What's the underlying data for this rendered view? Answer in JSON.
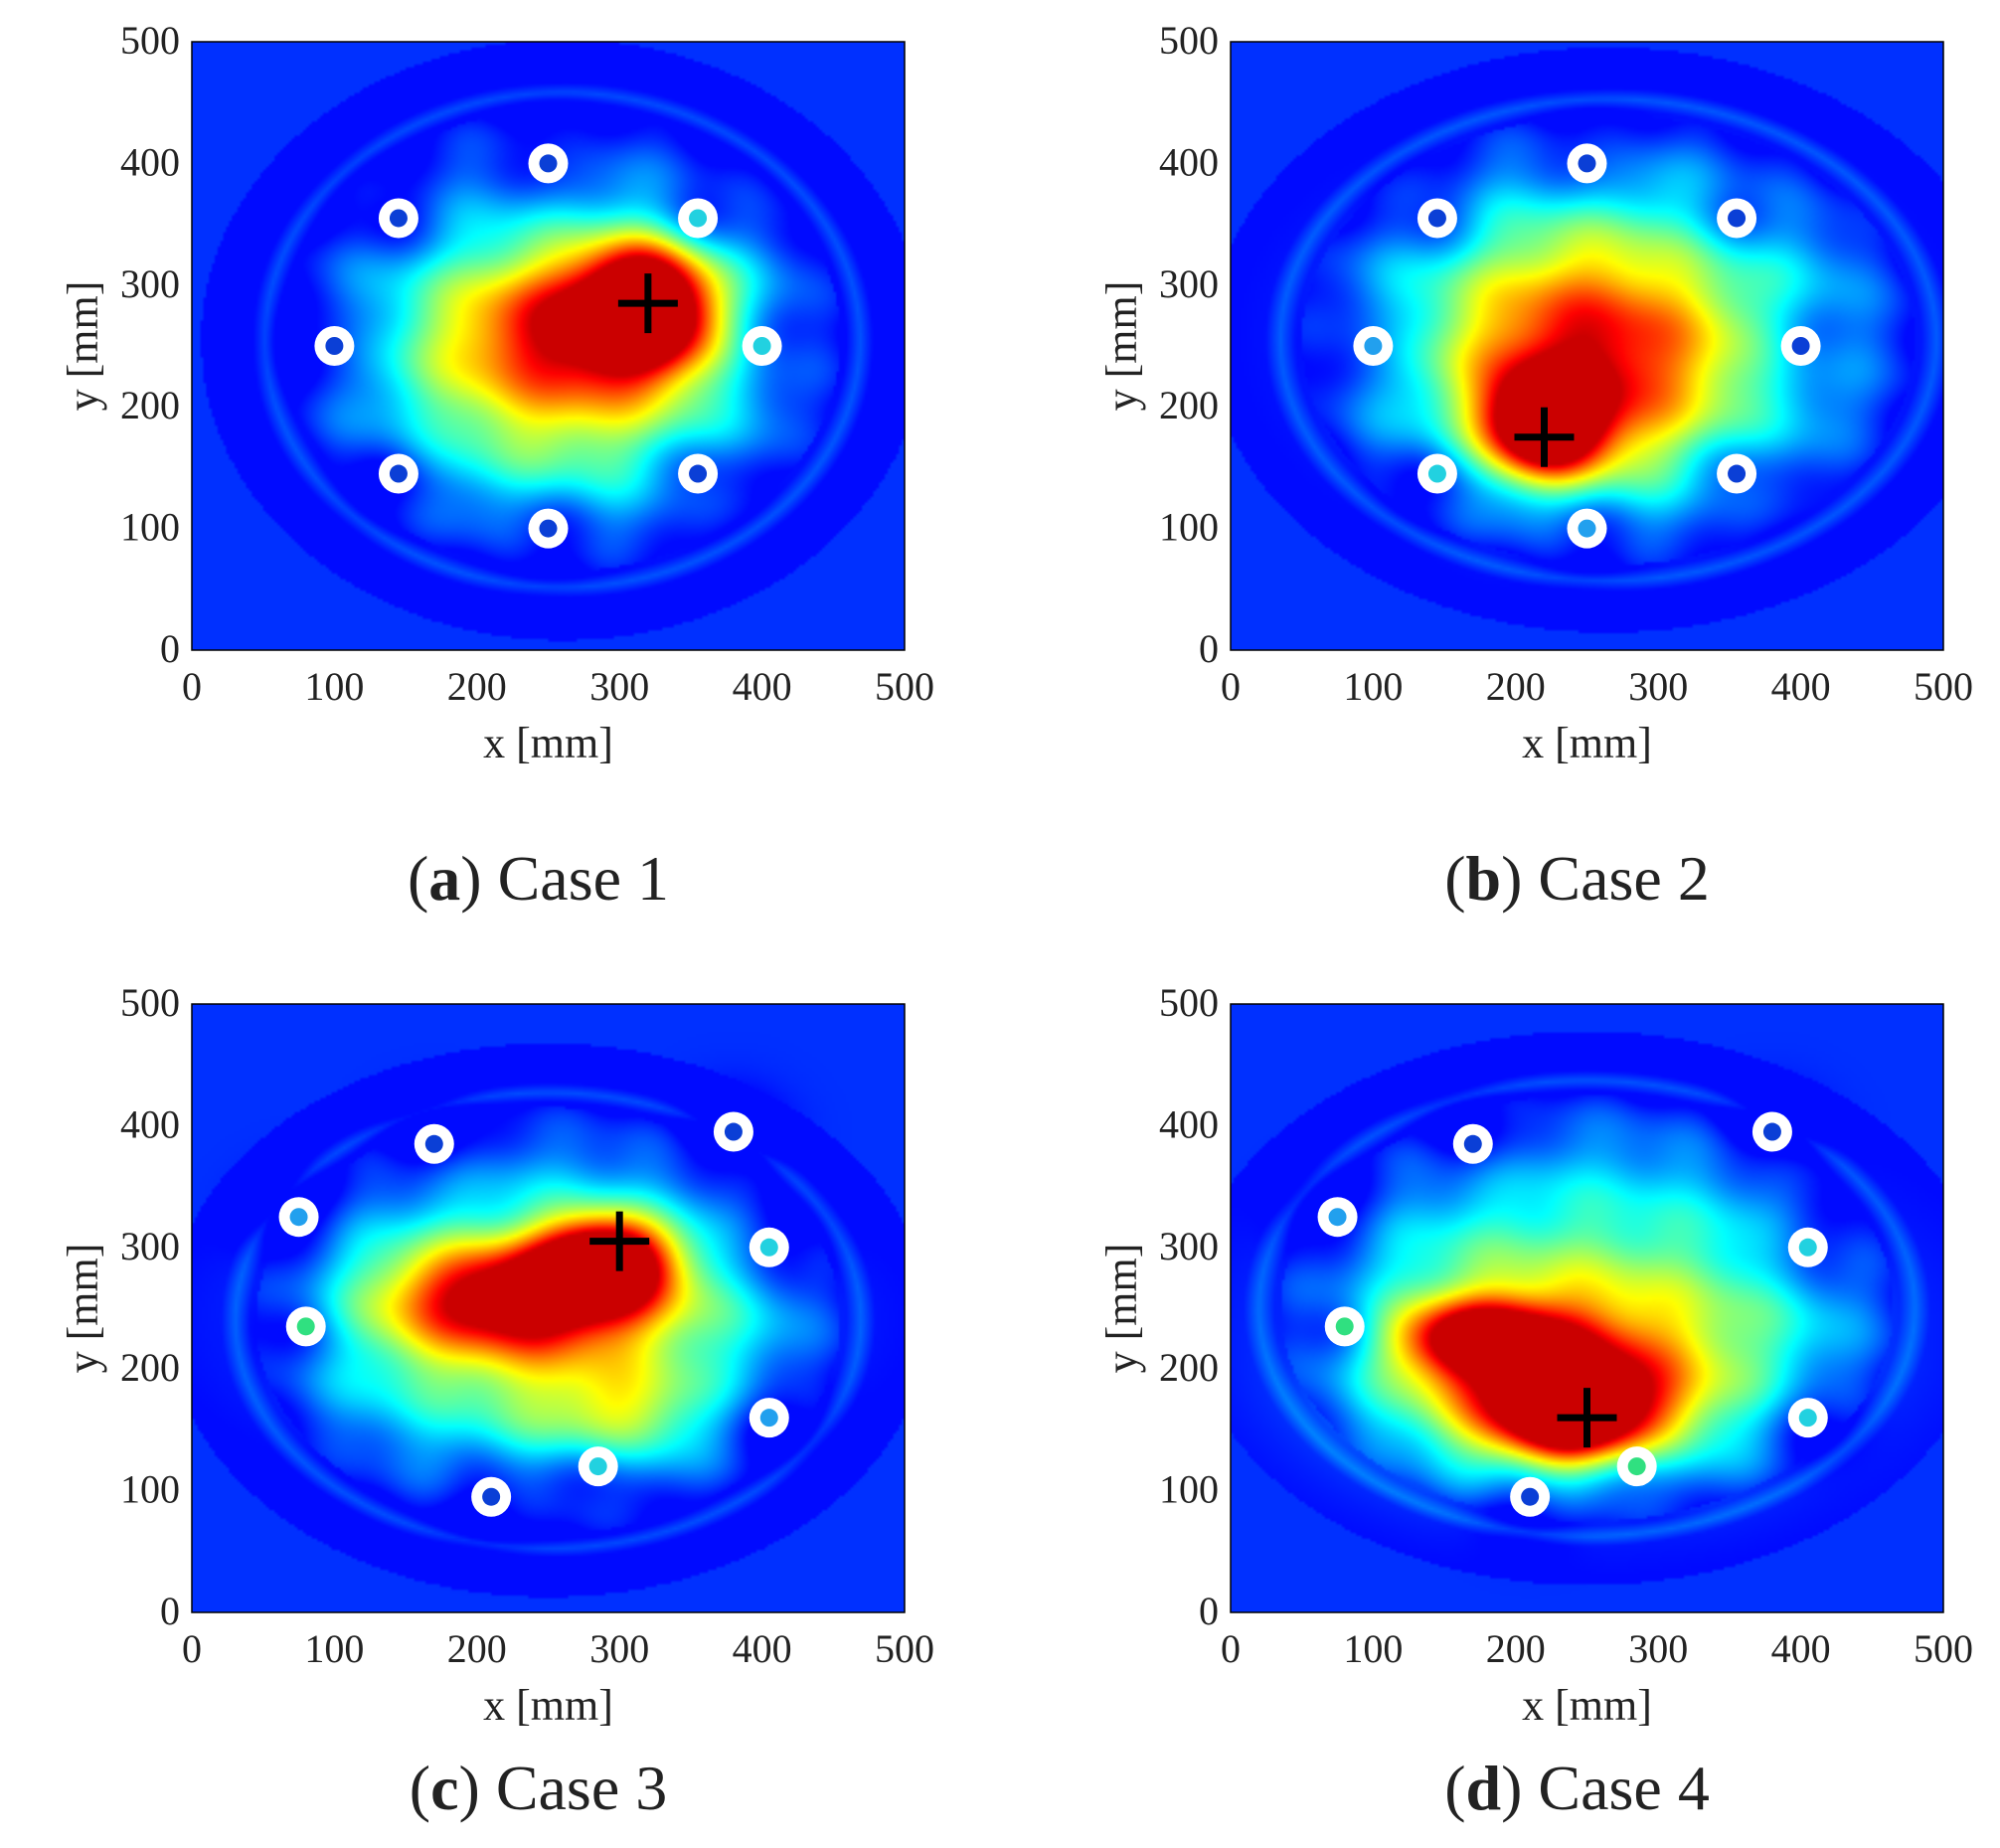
{
  "chart_data": [
    {
      "type": "heatmap",
      "panel": "a",
      "caption_letter": "a",
      "caption_text": "Case 1",
      "xlabel": "x [mm]",
      "ylabel": "y [mm]",
      "xlim": [
        0,
        500
      ],
      "ylim": [
        0,
        500
      ],
      "xticks": [
        0,
        100,
        200,
        300,
        400,
        500
      ],
      "yticks": [
        0,
        100,
        200,
        300,
        400,
        500
      ],
      "colormap": "jet",
      "estimated_source": {
        "x": 320,
        "y": 285
      },
      "sensors": [
        {
          "x": 250,
          "y": 400,
          "fill": "#0b3fd6"
        },
        {
          "x": 145,
          "y": 355,
          "fill": "#0b3fd6"
        },
        {
          "x": 355,
          "y": 355,
          "fill": "#22d1e0"
        },
        {
          "x": 100,
          "y": 250,
          "fill": "#0b3fd6"
        },
        {
          "x": 400,
          "y": 250,
          "fill": "#22d1e0"
        },
        {
          "x": 145,
          "y": 145,
          "fill": "#0b3fd6"
        },
        {
          "x": 355,
          "y": 145,
          "fill": "#0b3fd6"
        },
        {
          "x": 250,
          "y": 100,
          "fill": "#0b3fd6"
        }
      ],
      "hotspots": [
        {
          "x": 320,
          "y": 285,
          "intensity": 1.0,
          "sx": 45,
          "sy": 50
        },
        {
          "x": 270,
          "y": 270,
          "intensity": 0.55,
          "sx": 90,
          "sy": 60
        },
        {
          "x": 260,
          "y": 220,
          "intensity": 0.4,
          "sx": 110,
          "sy": 90
        }
      ],
      "region": {
        "cx": 260,
        "cy": 255,
        "rx": 195,
        "ry": 190
      }
    },
    {
      "type": "heatmap",
      "panel": "b",
      "caption_letter": "b",
      "caption_text": "Case 2",
      "xlabel": "x [mm]",
      "ylabel": "y [mm]",
      "xlim": [
        0,
        500
      ],
      "ylim": [
        0,
        500
      ],
      "xticks": [
        0,
        100,
        200,
        300,
        400,
        500
      ],
      "yticks": [
        0,
        100,
        200,
        300,
        400,
        500
      ],
      "colormap": "jet",
      "estimated_source": {
        "x": 220,
        "y": 175
      },
      "sensors": [
        {
          "x": 250,
          "y": 400,
          "fill": "#0b3fd6"
        },
        {
          "x": 145,
          "y": 355,
          "fill": "#0b3fd6"
        },
        {
          "x": 355,
          "y": 355,
          "fill": "#0b3fd6"
        },
        {
          "x": 100,
          "y": 250,
          "fill": "#22a0ee"
        },
        {
          "x": 400,
          "y": 250,
          "fill": "#0b3fd6"
        },
        {
          "x": 145,
          "y": 145,
          "fill": "#22d1e0"
        },
        {
          "x": 355,
          "y": 145,
          "fill": "#0b3fd6"
        },
        {
          "x": 250,
          "y": 100,
          "fill": "#22a0ee"
        }
      ],
      "hotspots": [
        {
          "x": 220,
          "y": 185,
          "intensity": 1.0,
          "sx": 40,
          "sy": 40
        },
        {
          "x": 250,
          "y": 230,
          "intensity": 0.5,
          "sx": 90,
          "sy": 90
        },
        {
          "x": 260,
          "y": 260,
          "intensity": 0.35,
          "sx": 140,
          "sy": 110
        }
      ],
      "region": {
        "cx": 265,
        "cy": 255,
        "rx": 215,
        "ry": 185
      }
    },
    {
      "type": "heatmap",
      "panel": "c",
      "caption_letter": "c",
      "caption_text": "Case 3",
      "xlabel": "x [mm]",
      "ylabel": "y [mm]",
      "xlim": [
        0,
        500
      ],
      "ylim": [
        0,
        500
      ],
      "xticks": [
        0,
        100,
        200,
        300,
        400,
        500
      ],
      "yticks": [
        0,
        100,
        200,
        300,
        400,
        500
      ],
      "colormap": "jet",
      "estimated_source": {
        "x": 300,
        "y": 305
      },
      "sensors": [
        {
          "x": 170,
          "y": 385,
          "fill": "#0b3fd6"
        },
        {
          "x": 380,
          "y": 395,
          "fill": "#0b3fd6"
        },
        {
          "x": 75,
          "y": 325,
          "fill": "#22a0ee"
        },
        {
          "x": 405,
          "y": 300,
          "fill": "#22d1e0"
        },
        {
          "x": 80,
          "y": 235,
          "fill": "#30e080"
        },
        {
          "x": 405,
          "y": 160,
          "fill": "#22a0ee"
        },
        {
          "x": 285,
          "y": 120,
          "fill": "#22d1e0"
        },
        {
          "x": 210,
          "y": 95,
          "fill": "#0b3fd6"
        }
      ],
      "hotspots": [
        {
          "x": 290,
          "y": 290,
          "intensity": 1.0,
          "sx": 45,
          "sy": 35
        },
        {
          "x": 230,
          "y": 260,
          "intensity": 0.7,
          "sx": 85,
          "sy": 40
        },
        {
          "x": 240,
          "y": 240,
          "intensity": 0.45,
          "sx": 140,
          "sy": 80
        },
        {
          "x": 300,
          "y": 160,
          "intensity": 0.3,
          "sx": 60,
          "sy": 40
        }
      ],
      "region": {
        "cx": 250,
        "cy": 240,
        "rx": 205,
        "ry": 175
      }
    },
    {
      "type": "heatmap",
      "panel": "d",
      "caption_letter": "d",
      "caption_text": "Case 4",
      "xlabel": "x [mm]",
      "ylabel": "y [mm]",
      "xlim": [
        0,
        500
      ],
      "ylim": [
        0,
        500
      ],
      "xticks": [
        0,
        100,
        200,
        300,
        400,
        500
      ],
      "yticks": [
        0,
        100,
        200,
        300,
        400,
        500
      ],
      "colormap": "jet",
      "estimated_source": {
        "x": 250,
        "y": 160
      },
      "sensors": [
        {
          "x": 170,
          "y": 385,
          "fill": "#0b3fd6"
        },
        {
          "x": 380,
          "y": 395,
          "fill": "#0b3fd6"
        },
        {
          "x": 75,
          "y": 325,
          "fill": "#22a0ee"
        },
        {
          "x": 405,
          "y": 300,
          "fill": "#22d1e0"
        },
        {
          "x": 80,
          "y": 235,
          "fill": "#30e080"
        },
        {
          "x": 405,
          "y": 160,
          "fill": "#22d1e0"
        },
        {
          "x": 285,
          "y": 120,
          "fill": "#30e080"
        },
        {
          "x": 210,
          "y": 95,
          "fill": "#0b3fd6"
        }
      ],
      "hotspots": [
        {
          "x": 240,
          "y": 165,
          "intensity": 0.95,
          "sx": 55,
          "sy": 40
        },
        {
          "x": 175,
          "y": 225,
          "intensity": 0.75,
          "sx": 55,
          "sy": 30
        },
        {
          "x": 230,
          "y": 190,
          "intensity": 0.5,
          "sx": 110,
          "sy": 70
        },
        {
          "x": 250,
          "y": 230,
          "intensity": 0.3,
          "sx": 170,
          "sy": 110
        }
      ],
      "region": {
        "cx": 250,
        "cy": 250,
        "rx": 215,
        "ry": 175
      }
    }
  ]
}
